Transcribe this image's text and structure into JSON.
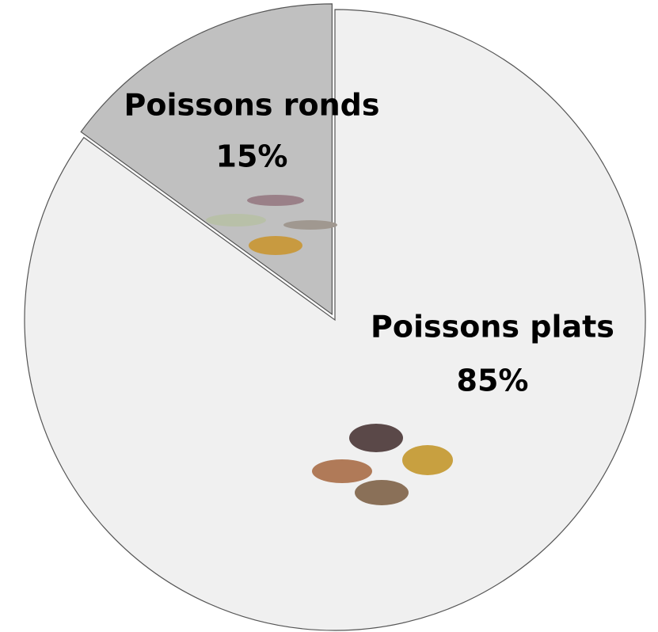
{
  "chart_data": {
    "type": "pie",
    "categories": [
      "Poissons plats",
      "Poissons ronds"
    ],
    "values": [
      85,
      15
    ],
    "value_labels": [
      "85%",
      "15%"
    ],
    "colors": [
      "#f0f0f0",
      "#c0c0c0"
    ],
    "exploded": [
      "Poissons ronds"
    ]
  }
}
